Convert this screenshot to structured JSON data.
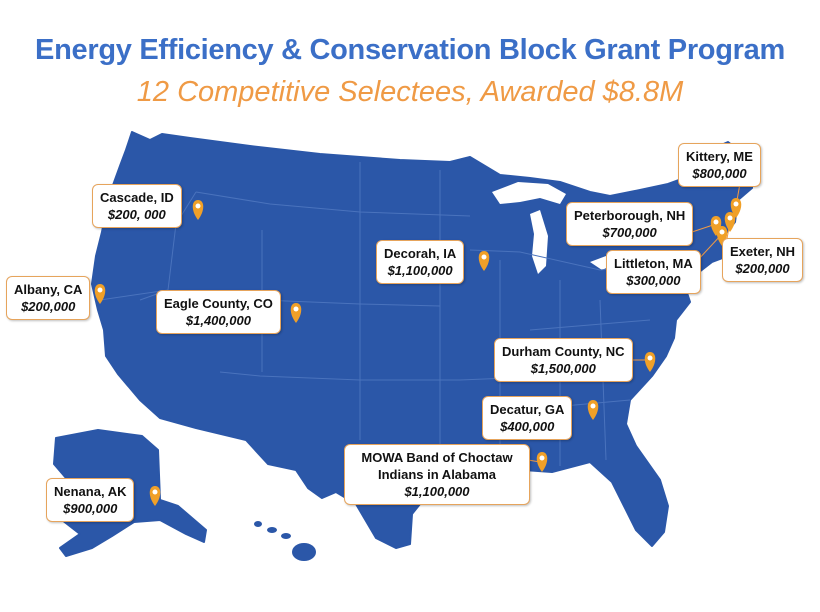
{
  "header": {
    "title": "Energy Efficiency & Conservation Block Grant Program",
    "subtitle": "12 Competitive Selectees, Awarded $8.8M"
  },
  "colors": {
    "title": "#3b6fc7",
    "subtitle": "#ef9a45",
    "map_fill": "#2b57a8",
    "state_lines": "#4a73bd",
    "pin": "#f0a028",
    "callout_border": "#e6a45c"
  },
  "selectees": [
    {
      "name": "Cascade, ID",
      "amount": "$200, 000",
      "icon": "map-pin-icon"
    },
    {
      "name": "Albany, CA",
      "amount": "$200,000",
      "icon": "map-pin-icon"
    },
    {
      "name": "Eagle County, CO",
      "amount": "$1,400,000",
      "icon": "map-pin-icon"
    },
    {
      "name": "Decorah, IA",
      "amount": "$1,100,000",
      "icon": "map-pin-icon"
    },
    {
      "name": "Kittery, ME",
      "amount": "$800,000",
      "icon": "map-pin-icon"
    },
    {
      "name": "Peterborough, NH",
      "amount": "$700,000",
      "icon": "map-pin-icon"
    },
    {
      "name": "Littleton, MA",
      "amount": "$300,000",
      "icon": "map-pin-icon"
    },
    {
      "name": "Exeter, NH",
      "amount": "$200,000",
      "icon": "map-pin-icon"
    },
    {
      "name": "Durham County, NC",
      "amount": "$1,500,000",
      "icon": "map-pin-icon"
    },
    {
      "name": "Decatur, GA",
      "amount": "$400,000",
      "icon": "map-pin-icon"
    },
    {
      "name": "MOWA Band of Choctaw Indians in Alabama",
      "amount": "$1,100,000",
      "icon": "map-pin-icon"
    },
    {
      "name": "Nenana, AK",
      "amount": "$900,000",
      "icon": "map-pin-icon"
    }
  ]
}
